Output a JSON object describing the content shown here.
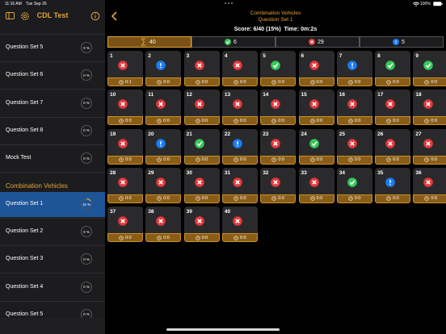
{
  "status_bar": {
    "time": "11:16 AM",
    "date": "Tue Sep 26",
    "battery": "100%"
  },
  "sidebar": {
    "title": "CDL Test",
    "items_top": [
      {
        "label": "Question Set 5",
        "progress": "0 %"
      },
      {
        "label": "Question Set 6",
        "progress": "0 %"
      },
      {
        "label": "Question Set 7",
        "progress": "0 %"
      },
      {
        "label": "Question Set 8",
        "progress": "0 %"
      },
      {
        "label": "Mock Test",
        "progress": "0 %"
      }
    ],
    "section": "Combination Vehicles",
    "items": [
      {
        "label": "Question Set 1",
        "progress": "15 %",
        "selected": true
      },
      {
        "label": "Question Set 2",
        "progress": "0 %"
      },
      {
        "label": "Question Set 3",
        "progress": "0 %"
      },
      {
        "label": "Question Set 4",
        "progress": "0 %"
      },
      {
        "label": "Question Set 5",
        "progress": "0 %"
      }
    ]
  },
  "main": {
    "title": "Combination Vehicles",
    "subtitle": "Question Set 1",
    "score_label": "Score:",
    "score": "6/40 (15%)",
    "time_label": "Time:",
    "time": "0m:2s",
    "tabs": [
      {
        "icon": "all",
        "count": 40,
        "active": true
      },
      {
        "icon": "correct",
        "count": 6
      },
      {
        "icon": "wrong",
        "count": 29
      },
      {
        "icon": "unanswered",
        "count": 5
      }
    ],
    "questions": [
      {
        "number": 1,
        "status": "wrong",
        "time": "0:1"
      },
      {
        "number": 2,
        "status": "unanswered",
        "time": "0:0"
      },
      {
        "number": 3,
        "status": "wrong",
        "time": "0:0"
      },
      {
        "number": 4,
        "status": "wrong",
        "time": "0:0"
      },
      {
        "number": 5,
        "status": "correct",
        "time": "0:0"
      },
      {
        "number": 6,
        "status": "wrong",
        "time": "0:0"
      },
      {
        "number": 7,
        "status": "unanswered",
        "time": "0:0"
      },
      {
        "number": 8,
        "status": "correct",
        "time": "0:0"
      },
      {
        "number": 9,
        "status": "correct",
        "time": "0:0"
      },
      {
        "number": 10,
        "status": "wrong",
        "time": "0:0"
      },
      {
        "number": 11,
        "status": "wrong",
        "time": "0:0"
      },
      {
        "number": 12,
        "status": "wrong",
        "time": "0:0"
      },
      {
        "number": 13,
        "status": "wrong",
        "time": "0:0"
      },
      {
        "number": 14,
        "status": "wrong",
        "time": "0:0"
      },
      {
        "number": 15,
        "status": "wrong",
        "time": "0:0"
      },
      {
        "number": 16,
        "status": "wrong",
        "time": "0:0"
      },
      {
        "number": 17,
        "status": "wrong",
        "time": "0:0"
      },
      {
        "number": 18,
        "status": "wrong",
        "time": "0:0"
      },
      {
        "number": 19,
        "status": "wrong",
        "time": "0:0"
      },
      {
        "number": 20,
        "status": "unanswered",
        "time": "0:0"
      },
      {
        "number": 21,
        "status": "correct",
        "time": "0:0"
      },
      {
        "number": 22,
        "status": "unanswered",
        "time": "0:0"
      },
      {
        "number": 23,
        "status": "wrong",
        "time": "0:0"
      },
      {
        "number": 24,
        "status": "correct",
        "time": "0:0"
      },
      {
        "number": 25,
        "status": "wrong",
        "time": "0:0"
      },
      {
        "number": 26,
        "status": "wrong",
        "time": "0:0"
      },
      {
        "number": 27,
        "status": "wrong",
        "time": "0:0"
      },
      {
        "number": 28,
        "status": "wrong",
        "time": "0:0"
      },
      {
        "number": 29,
        "status": "wrong",
        "time": "0:0"
      },
      {
        "number": 30,
        "status": "wrong",
        "time": "0:0"
      },
      {
        "number": 31,
        "status": "wrong",
        "time": "0:0"
      },
      {
        "number": 32,
        "status": "wrong",
        "time": "0:0"
      },
      {
        "number": 33,
        "status": "wrong",
        "time": "0:0"
      },
      {
        "number": 34,
        "status": "correct",
        "time": "0:0"
      },
      {
        "number": 35,
        "status": "unanswered",
        "time": "0:0"
      },
      {
        "number": 36,
        "status": "wrong",
        "time": "0:0"
      },
      {
        "number": 37,
        "status": "wrong",
        "time": "0:0"
      },
      {
        "number": 38,
        "status": "wrong",
        "time": "0:0"
      },
      {
        "number": 39,
        "status": "wrong",
        "time": "0:0"
      },
      {
        "number": 40,
        "status": "wrong",
        "time": "0:0"
      }
    ]
  }
}
